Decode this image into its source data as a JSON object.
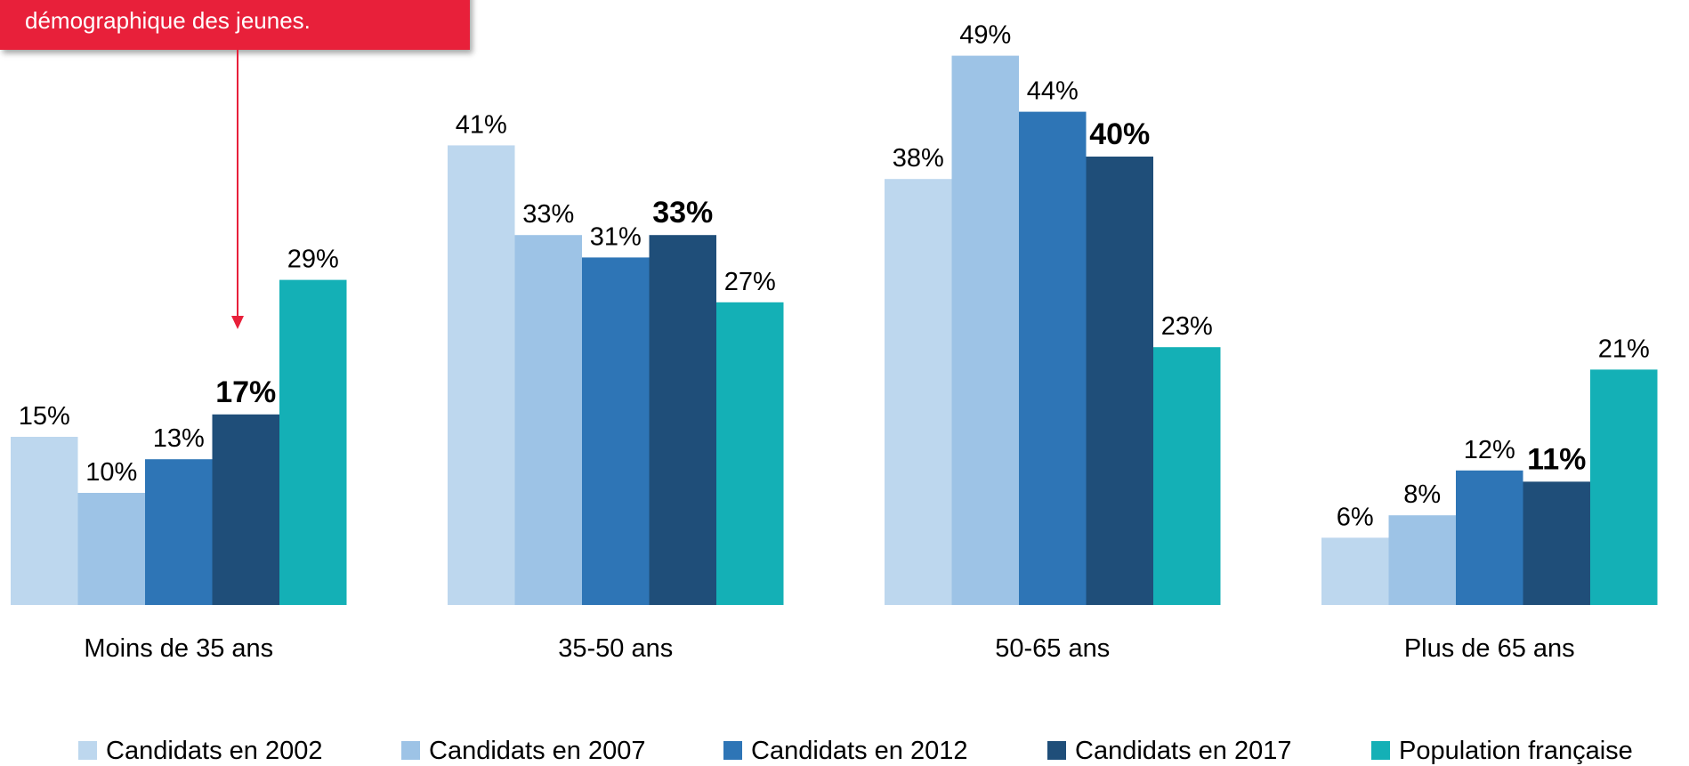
{
  "callout": {
    "text": "démographique des jeunes."
  },
  "colors": {
    "callout": "#e8203a",
    "arrow": "#e8203a",
    "series": [
      "#bdd7ee",
      "#9dc3e6",
      "#2e75b6",
      "#1f4e79",
      "#14b0b6"
    ]
  },
  "chart_data": {
    "type": "bar",
    "title": "",
    "xlabel": "",
    "ylabel": "",
    "ylim": [
      0,
      50
    ],
    "grid": false,
    "legend_position": "bottom",
    "categories": [
      "Moins de 35 ans",
      "35-50 ans",
      "50-65 ans",
      "Plus de 65 ans"
    ],
    "series": [
      {
        "name": "Candidats en 2002",
        "values": [
          15,
          41,
          38,
          6
        ],
        "labels": [
          "15%",
          "41%",
          "38%",
          "6%"
        ],
        "bold": false
      },
      {
        "name": "Candidats en 2007",
        "values": [
          10,
          33,
          49,
          8
        ],
        "labels": [
          "10%",
          "33%",
          "49%",
          "8%"
        ],
        "bold": false
      },
      {
        "name": "Candidats en 2012",
        "values": [
          13,
          31,
          44,
          12
        ],
        "labels": [
          "13%",
          "31%",
          "44%",
          "12%"
        ],
        "bold": false
      },
      {
        "name": "Candidats en 2017",
        "values": [
          17,
          33,
          40,
          11
        ],
        "labels": [
          "17%",
          "33%",
          "40%",
          "11%"
        ],
        "bold": true
      },
      {
        "name": "Population française",
        "values": [
          29,
          27,
          23,
          21
        ],
        "labels": [
          "29%",
          "27%",
          "23%",
          "21%"
        ],
        "bold": false
      }
    ]
  }
}
